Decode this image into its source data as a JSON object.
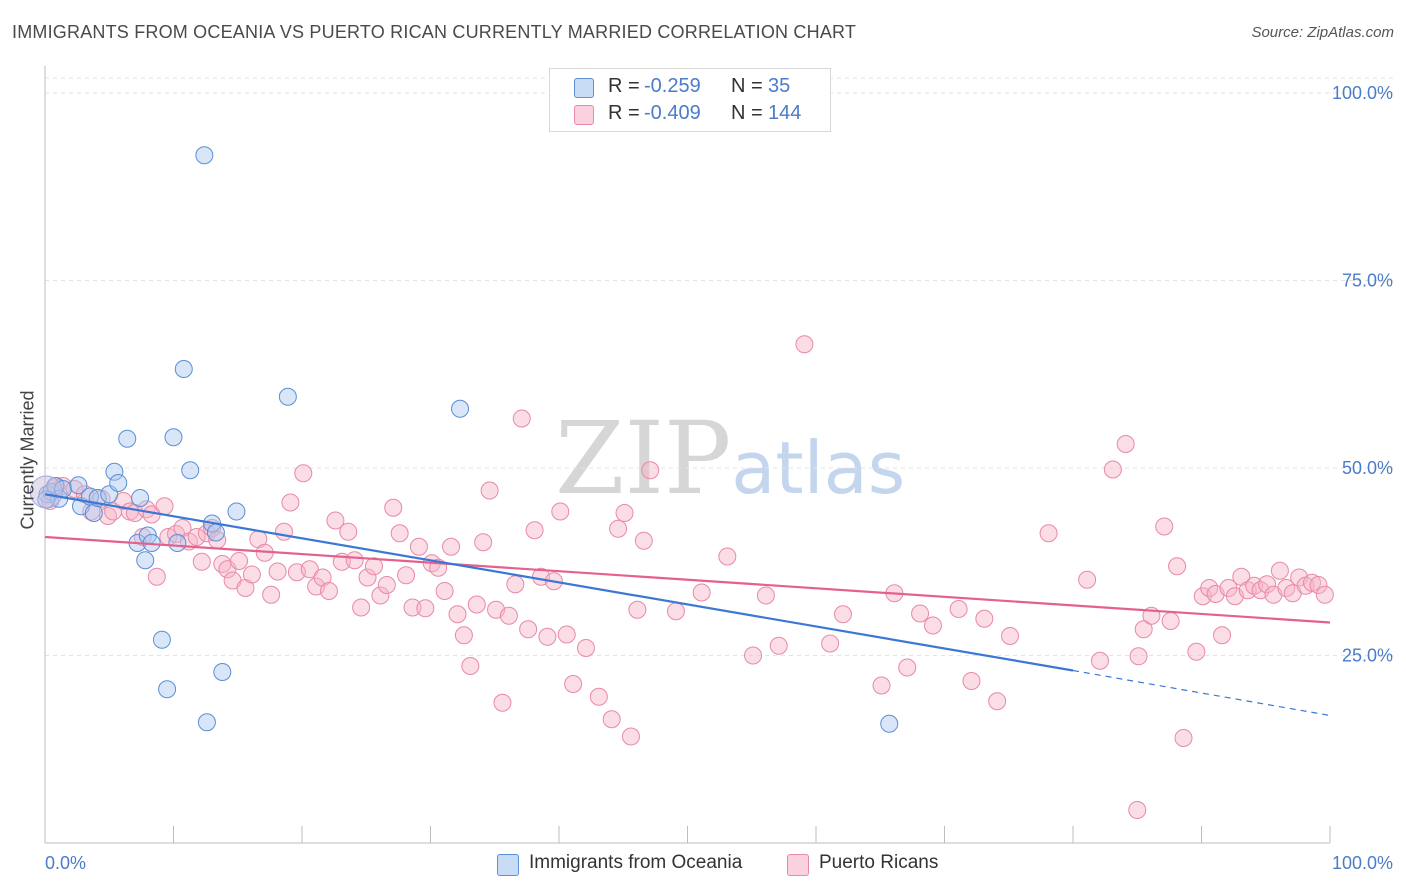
{
  "header": {
    "title": "IMMIGRANTS FROM OCEANIA VS PUERTO RICAN CURRENTLY MARRIED CORRELATION CHART",
    "source": "Source: ZipAtlas.com"
  },
  "watermark": {
    "zip": "ZIP",
    "atlas": "atlas"
  },
  "legend": {
    "rows": [
      {
        "r_label": "R =",
        "r_value": "-0.259",
        "n_label": "N =",
        "n_value": "35",
        "color": "#a9c8f0"
      },
      {
        "r_label": "R =",
        "r_value": "-0.409",
        "n_label": "N =",
        "n_value": "144",
        "color": "#f6b3c8"
      }
    ]
  },
  "bottom_legend": [
    {
      "label": "Immigrants from Oceania",
      "color": "#a9c8f0"
    },
    {
      "label": "Puerto Ricans",
      "color": "#f6b3c8"
    }
  ],
  "chart_data": {
    "type": "scatter",
    "title": "IMMIGRANTS FROM OCEANIA VS PUERTO RICAN CURRENTLY MARRIED CORRELATION CHART",
    "xlabel": "",
    "ylabel": "Currently Married",
    "xlim": [
      0,
      100
    ],
    "ylim": [
      0,
      102
    ],
    "x_tick_labels": [
      "0.0%",
      "100.0%"
    ],
    "y_ticks": [
      25,
      50,
      75,
      100
    ],
    "y_tick_labels": [
      "25.0%",
      "50.0%",
      "75.0%",
      "100.0%"
    ],
    "grid": true,
    "legend_position": "top-center",
    "colors": {
      "oceania": "#4a86d8",
      "oceania_fill": "#a9c8f0",
      "puerto_rican": "#e4608f",
      "puerto_rican_fill": "#f6b3c8"
    },
    "series": [
      {
        "name": "Immigrants from Oceania",
        "points": [
          [
            0.2,
            46.5
          ],
          [
            0.5,
            46.8
          ],
          [
            0.8,
            47.6
          ],
          [
            1.1,
            45.9
          ],
          [
            1.4,
            47.2
          ],
          [
            2.6,
            47.7
          ],
          [
            2.8,
            44.9
          ],
          [
            3.5,
            46.2
          ],
          [
            3.8,
            44.0
          ],
          [
            4.1,
            46.0
          ],
          [
            5.0,
            46.5
          ],
          [
            5.4,
            49.5
          ],
          [
            5.7,
            48.0
          ],
          [
            6.4,
            53.9
          ],
          [
            7.2,
            40.0
          ],
          [
            7.4,
            46.0
          ],
          [
            7.8,
            37.7
          ],
          [
            8.0,
            41.0
          ],
          [
            8.3,
            40.0
          ],
          [
            9.1,
            27.1
          ],
          [
            9.5,
            20.5
          ],
          [
            10.0,
            54.1
          ],
          [
            10.3,
            40.0
          ],
          [
            10.8,
            63.2
          ],
          [
            11.3,
            49.7
          ],
          [
            12.4,
            91.7
          ],
          [
            12.6,
            16.1
          ],
          [
            13.0,
            42.6
          ],
          [
            13.3,
            41.4
          ],
          [
            13.8,
            22.8
          ],
          [
            14.9,
            44.2
          ],
          [
            18.9,
            59.5
          ],
          [
            32.3,
            57.9
          ],
          [
            0.1,
            45.8
          ],
          [
            65.7,
            15.9
          ]
        ],
        "trend": {
          "x": [
            0,
            80
          ],
          "y": [
            46.5,
            23.0
          ]
        },
        "trend_dashed": {
          "x": [
            80,
            100
          ],
          "y": [
            23.0,
            17.0
          ]
        }
      },
      {
        "name": "Puerto Ricans",
        "points": [
          [
            0.4,
            45.6
          ],
          [
            0.9,
            47.6
          ],
          [
            1.4,
            47.6
          ],
          [
            2.3,
            47.2
          ],
          [
            3.1,
            46.5
          ],
          [
            3.6,
            44.2
          ],
          [
            4.4,
            45.9
          ],
          [
            4.9,
            43.6
          ],
          [
            5.3,
            44.2
          ],
          [
            6.1,
            45.6
          ],
          [
            6.6,
            44.2
          ],
          [
            7.0,
            44.0
          ],
          [
            7.6,
            40.8
          ],
          [
            7.9,
            44.5
          ],
          [
            8.3,
            43.8
          ],
          [
            8.7,
            35.5
          ],
          [
            9.3,
            44.9
          ],
          [
            9.6,
            40.8
          ],
          [
            10.2,
            41.2
          ],
          [
            10.7,
            42.0
          ],
          [
            11.2,
            40.2
          ],
          [
            11.8,
            40.8
          ],
          [
            12.2,
            37.5
          ],
          [
            12.6,
            41.3
          ],
          [
            13.0,
            42.0
          ],
          [
            13.4,
            40.4
          ],
          [
            13.8,
            37.2
          ],
          [
            14.2,
            36.5
          ],
          [
            14.6,
            35.0
          ],
          [
            15.1,
            37.6
          ],
          [
            15.6,
            34.0
          ],
          [
            16.1,
            35.8
          ],
          [
            16.6,
            40.5
          ],
          [
            17.1,
            38.7
          ],
          [
            17.6,
            33.1
          ],
          [
            18.1,
            36.2
          ],
          [
            18.6,
            41.5
          ],
          [
            19.1,
            45.4
          ],
          [
            19.6,
            36.1
          ],
          [
            20.1,
            49.3
          ],
          [
            20.6,
            36.5
          ],
          [
            21.1,
            34.2
          ],
          [
            21.6,
            35.4
          ],
          [
            22.1,
            33.6
          ],
          [
            22.6,
            43.0
          ],
          [
            23.1,
            37.5
          ],
          [
            23.6,
            41.5
          ],
          [
            24.1,
            37.7
          ],
          [
            24.6,
            31.4
          ],
          [
            25.1,
            35.4
          ],
          [
            25.6,
            36.9
          ],
          [
            26.1,
            33.0
          ],
          [
            26.6,
            34.4
          ],
          [
            27.1,
            44.7
          ],
          [
            27.6,
            41.3
          ],
          [
            28.1,
            35.7
          ],
          [
            28.6,
            31.4
          ],
          [
            29.1,
            39.5
          ],
          [
            29.6,
            31.3
          ],
          [
            30.1,
            37.3
          ],
          [
            30.6,
            36.7
          ],
          [
            31.1,
            33.6
          ],
          [
            31.6,
            39.5
          ],
          [
            32.1,
            30.5
          ],
          [
            32.6,
            27.7
          ],
          [
            33.1,
            23.6
          ],
          [
            33.6,
            31.8
          ],
          [
            34.1,
            40.1
          ],
          [
            34.6,
            47.0
          ],
          [
            35.1,
            31.1
          ],
          [
            35.6,
            18.7
          ],
          [
            36.1,
            30.3
          ],
          [
            36.6,
            34.5
          ],
          [
            37.1,
            56.6
          ],
          [
            37.6,
            28.5
          ],
          [
            38.1,
            41.7
          ],
          [
            38.6,
            35.5
          ],
          [
            39.1,
            27.5
          ],
          [
            39.6,
            34.9
          ],
          [
            40.1,
            44.2
          ],
          [
            40.6,
            27.8
          ],
          [
            41.1,
            21.2
          ],
          [
            42.1,
            26.0
          ],
          [
            43.1,
            19.5
          ],
          [
            44.1,
            16.5
          ],
          [
            44.6,
            41.9
          ],
          [
            45.1,
            44.0
          ],
          [
            45.6,
            14.2
          ],
          [
            46.1,
            31.1
          ],
          [
            46.6,
            40.3
          ],
          [
            47.1,
            49.7
          ],
          [
            49.1,
            30.9
          ],
          [
            51.1,
            33.4
          ],
          [
            53.1,
            38.2
          ],
          [
            55.1,
            25.0
          ],
          [
            56.1,
            33.0
          ],
          [
            57.1,
            26.3
          ],
          [
            59.1,
            66.5
          ],
          [
            61.1,
            26.6
          ],
          [
            62.1,
            30.5
          ],
          [
            65.1,
            21.0
          ],
          [
            66.1,
            33.3
          ],
          [
            67.1,
            23.4
          ],
          [
            68.1,
            30.6
          ],
          [
            69.1,
            29.0
          ],
          [
            71.1,
            31.2
          ],
          [
            72.1,
            21.6
          ],
          [
            73.1,
            29.9
          ],
          [
            74.1,
            18.9
          ],
          [
            75.1,
            27.6
          ],
          [
            78.1,
            41.3
          ],
          [
            81.1,
            35.1
          ],
          [
            82.1,
            24.3
          ],
          [
            83.1,
            49.8
          ],
          [
            84.1,
            53.2
          ],
          [
            85.1,
            24.9
          ],
          [
            85.5,
            28.5
          ],
          [
            86.1,
            30.3
          ],
          [
            87.1,
            42.2
          ],
          [
            87.6,
            29.6
          ],
          [
            88.1,
            36.9
          ],
          [
            88.6,
            14.0
          ],
          [
            89.6,
            25.5
          ],
          [
            90.1,
            32.9
          ],
          [
            90.6,
            34.0
          ],
          [
            91.1,
            33.2
          ],
          [
            91.6,
            27.7
          ],
          [
            92.1,
            34.0
          ],
          [
            92.6,
            32.9
          ],
          [
            93.1,
            35.5
          ],
          [
            93.6,
            33.7
          ],
          [
            94.1,
            34.3
          ],
          [
            94.6,
            33.7
          ],
          [
            95.1,
            34.5
          ],
          [
            95.6,
            33.1
          ],
          [
            96.1,
            36.3
          ],
          [
            96.6,
            34.0
          ],
          [
            97.1,
            33.3
          ],
          [
            97.6,
            35.4
          ],
          [
            98.1,
            34.3
          ],
          [
            98.6,
            34.7
          ],
          [
            99.1,
            34.4
          ],
          [
            99.6,
            33.1
          ],
          [
            85.0,
            4.4
          ]
        ],
        "trend": {
          "x": [
            0,
            100
          ],
          "y": [
            40.8,
            29.4
          ]
        }
      }
    ]
  }
}
